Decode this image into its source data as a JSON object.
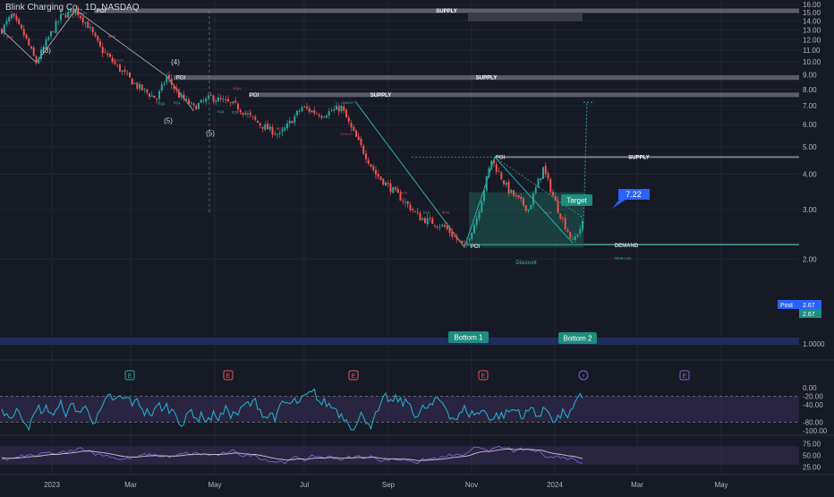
{
  "header": {
    "title": "Blink Charging Co., 1D, NASDAQ"
  },
  "colors": {
    "background": "#161a25",
    "grid": "#222633",
    "up": "#26a69a",
    "down": "#ef5350",
    "supply_zone": "#9598a1",
    "accent_blue": "#2962ff",
    "teal_label": "#1e8c7e",
    "rsi_line": "#22b5d6",
    "osc_purple": "#8c5bd6",
    "osc_white": "#c8c8c8",
    "band_fill": "#3b2f57"
  },
  "chart_data": [
    {
      "type": "candlestick",
      "title": "Blink Charging Co., 1D, NASDAQ",
      "x_ticks": [
        "2023",
        "Mar",
        "May",
        "Jul",
        "Sep",
        "Nov",
        "2024",
        "Mar",
        "May"
      ],
      "y_ticks": [
        "16.00",
        "15.00",
        "14.00",
        "13.00",
        "12.00",
        "11.00",
        "10.00",
        "9.00",
        "8.00",
        "7.00",
        "6.00",
        "5.00",
        "4.00",
        "3.00",
        "2.00",
        "1.0000"
      ],
      "ylim": [
        0.5,
        16.2
      ],
      "scale": "log",
      "price_path": [
        {
          "t": 0,
          "v": 13.0
        },
        {
          "t": 4,
          "v": 14.6
        },
        {
          "t": 9,
          "v": 12.5
        },
        {
          "t": 14,
          "v": 9.95
        },
        {
          "t": 19,
          "v": 12.2
        },
        {
          "t": 24,
          "v": 14.5
        },
        {
          "t": 30,
          "v": 15.3
        },
        {
          "t": 35,
          "v": 13.5
        },
        {
          "t": 40,
          "v": 11.2
        },
        {
          "t": 47,
          "v": 9.6
        },
        {
          "t": 55,
          "v": 8.2
        },
        {
          "t": 63,
          "v": 7.4
        },
        {
          "t": 67,
          "v": 8.9
        },
        {
          "t": 72,
          "v": 7.6
        },
        {
          "t": 78,
          "v": 6.9
        },
        {
          "t": 85,
          "v": 7.5
        },
        {
          "t": 95,
          "v": 7.0
        },
        {
          "t": 105,
          "v": 6.0
        },
        {
          "t": 113,
          "v": 5.5
        },
        {
          "t": 122,
          "v": 6.9
        },
        {
          "t": 130,
          "v": 6.5
        },
        {
          "t": 138,
          "v": 6.9
        },
        {
          "t": 142,
          "v": 5.8
        },
        {
          "t": 152,
          "v": 4.0
        },
        {
          "t": 162,
          "v": 3.3
        },
        {
          "t": 170,
          "v": 2.8
        },
        {
          "t": 180,
          "v": 2.6
        },
        {
          "t": 188,
          "v": 2.2
        },
        {
          "t": 193,
          "v": 2.8
        },
        {
          "t": 199,
          "v": 4.5
        },
        {
          "t": 206,
          "v": 3.5
        },
        {
          "t": 214,
          "v": 3.0
        },
        {
          "t": 220,
          "v": 4.2
        },
        {
          "t": 226,
          "v": 3.0
        },
        {
          "t": 232,
          "v": 2.3
        },
        {
          "t": 236,
          "v": 2.67
        }
      ],
      "zones": [
        {
          "label": "SUPPLY",
          "price": 15.2
        },
        {
          "label": "SUPPLY",
          "price": 8.8
        },
        {
          "label": "SUPPLY",
          "price": 7.65
        },
        {
          "label": "SUPPLY",
          "price": 4.6
        },
        {
          "label": "DEMAND",
          "price": 2.25
        }
      ],
      "poi_labels": [
        "POI",
        "POI",
        "POI",
        "POI",
        "POI"
      ],
      "wave_labels": [
        "(3)",
        "(4)",
        "(5)",
        "(5)"
      ],
      "small_labels": [
        "BOS",
        "BOS",
        "CHoCH",
        "CHoCH",
        "EQL",
        "EQL",
        "EQL",
        "EQL",
        "BOS",
        "BOS",
        "EQH",
        "BOS",
        "CHoCH",
        "EQL",
        "BOS",
        "EQH",
        "CHoCH",
        "Discount",
        "Weak Low"
      ],
      "callouts": {
        "target": "Target",
        "target_value": "7.22",
        "bottom1": "Bottom 1",
        "bottom2": "Bottom 2",
        "post_label": "Post",
        "post_value": "2.67",
        "last_value": "2.67"
      },
      "event_markers": [
        "E",
        "E",
        "E",
        "E",
        "⚡",
        "E"
      ]
    },
    {
      "type": "line",
      "name": "oscillator-1",
      "y_ticks": [
        "0.00",
        "-20.00",
        "-40.00",
        "-80.00",
        "-100.00"
      ],
      "ylim": [
        -100,
        0
      ],
      "bands": [
        -20,
        -80
      ]
    },
    {
      "type": "line",
      "name": "oscillator-2",
      "y_ticks": [
        "75.00",
        "50.00",
        "25.00"
      ],
      "ylim": [
        20,
        80
      ],
      "bands": [
        70,
        30
      ]
    }
  ]
}
